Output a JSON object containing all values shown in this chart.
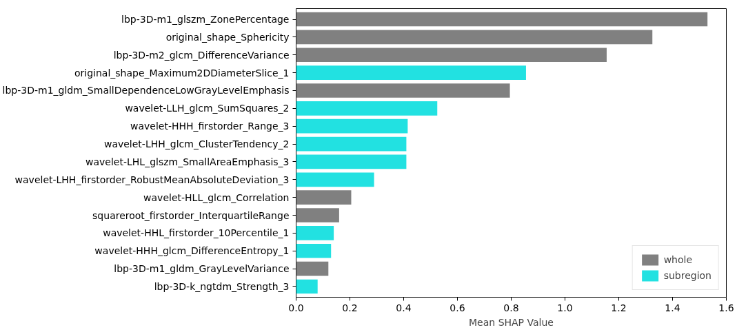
{
  "chart_data": {
    "type": "bar",
    "orientation": "horizontal",
    "xlabel": "Mean SHAP Value",
    "categories": [
      "lbp-3D-m1_glszm_ZonePercentage",
      "original_shape_Sphericity",
      "lbp-3D-m2_glcm_DifferenceVariance",
      "original_shape_Maximum2DDiameterSlice_1",
      "lbp-3D-m1_gldm_SmallDependenceLowGrayLevelEmphasis",
      "wavelet-LLH_glcm_SumSquares_2",
      "wavelet-HHH_firstorder_Range_3",
      "wavelet-LHH_glcm_ClusterTendency_2",
      "wavelet-LHL_glszm_SmallAreaEmphasis_3",
      "wavelet-LHH_firstorder_RobustMeanAbsoluteDeviation_3",
      "wavelet-HLL_glcm_Correlation",
      "squareroot_firstorder_InterquartileRange",
      "wavelet-HHL_firstorder_10Percentile_1",
      "wavelet-HHH_glcm_DifferenceEntropy_1",
      "lbp-3D-m1_gldm_GrayLevelVariance",
      "lbp-3D-k_ngtdm_Strength_3"
    ],
    "series": [
      {
        "name": "whole",
        "color": "#808080",
        "values": [
          1.53,
          1.325,
          1.155,
          null,
          0.795,
          null,
          null,
          null,
          null,
          null,
          0.205,
          0.16,
          null,
          null,
          0.12,
          null
        ]
      },
      {
        "name": "subregion",
        "color": "#22e1e1",
        "values": [
          null,
          null,
          null,
          0.855,
          null,
          0.525,
          0.415,
          0.41,
          0.41,
          0.29,
          null,
          null,
          0.14,
          0.13,
          null,
          0.08
        ]
      }
    ],
    "xlim": [
      0,
      1.6
    ],
    "xticks": [
      {
        "value": 0,
        "label": "0.0"
      },
      0.2,
      0.4,
      0.6,
      0.8,
      {
        "value": 1,
        "label": "1.0"
      },
      1.2,
      1.4,
      1.6
    ],
    "legend": "bottom right",
    "grid": false
  }
}
